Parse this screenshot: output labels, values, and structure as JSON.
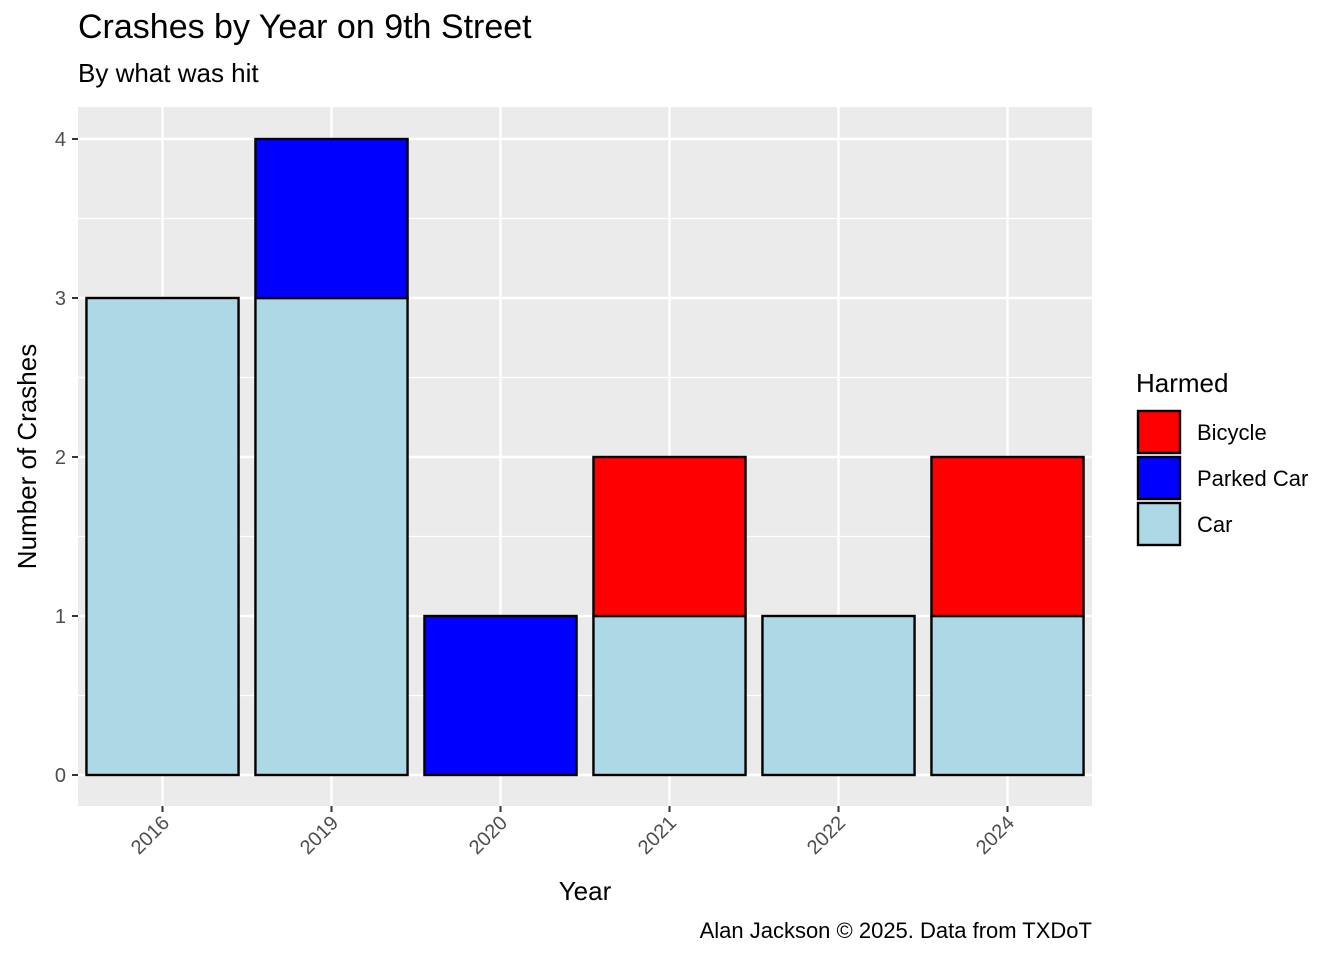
{
  "title": "Crashes by Year on 9th Street",
  "subtitle": "By what was hit",
  "caption": "Alan Jackson © 2025. Data from TXDoT",
  "chart_data": {
    "type": "bar",
    "stacked": true,
    "title": "Crashes by Year on 9th Street",
    "subtitle": "By what was hit",
    "xlabel": "Year",
    "ylabel": "Number of Crashes",
    "categories": [
      "2016",
      "2019",
      "2020",
      "2021",
      "2022",
      "2024"
    ],
    "series": [
      {
        "name": "Car",
        "color": "#ADD8E6",
        "values": [
          3,
          3,
          0,
          1,
          1,
          1
        ]
      },
      {
        "name": "Parked Car",
        "color": "#0000FF",
        "values": [
          0,
          1,
          1,
          0,
          0,
          0
        ]
      },
      {
        "name": "Bicycle",
        "color": "#FF0000",
        "values": [
          0,
          0,
          0,
          1,
          0,
          1
        ]
      }
    ],
    "legend_title": "Harmed",
    "legend_order": [
      "Bicycle",
      "Parked Car",
      "Car"
    ],
    "legend_position": "right",
    "ylim": [
      0,
      4
    ],
    "y_ticks": [
      0,
      1,
      2,
      3,
      4
    ],
    "grid": true,
    "panel_background": "#EBEBEB",
    "bar_outline": "#000000"
  }
}
